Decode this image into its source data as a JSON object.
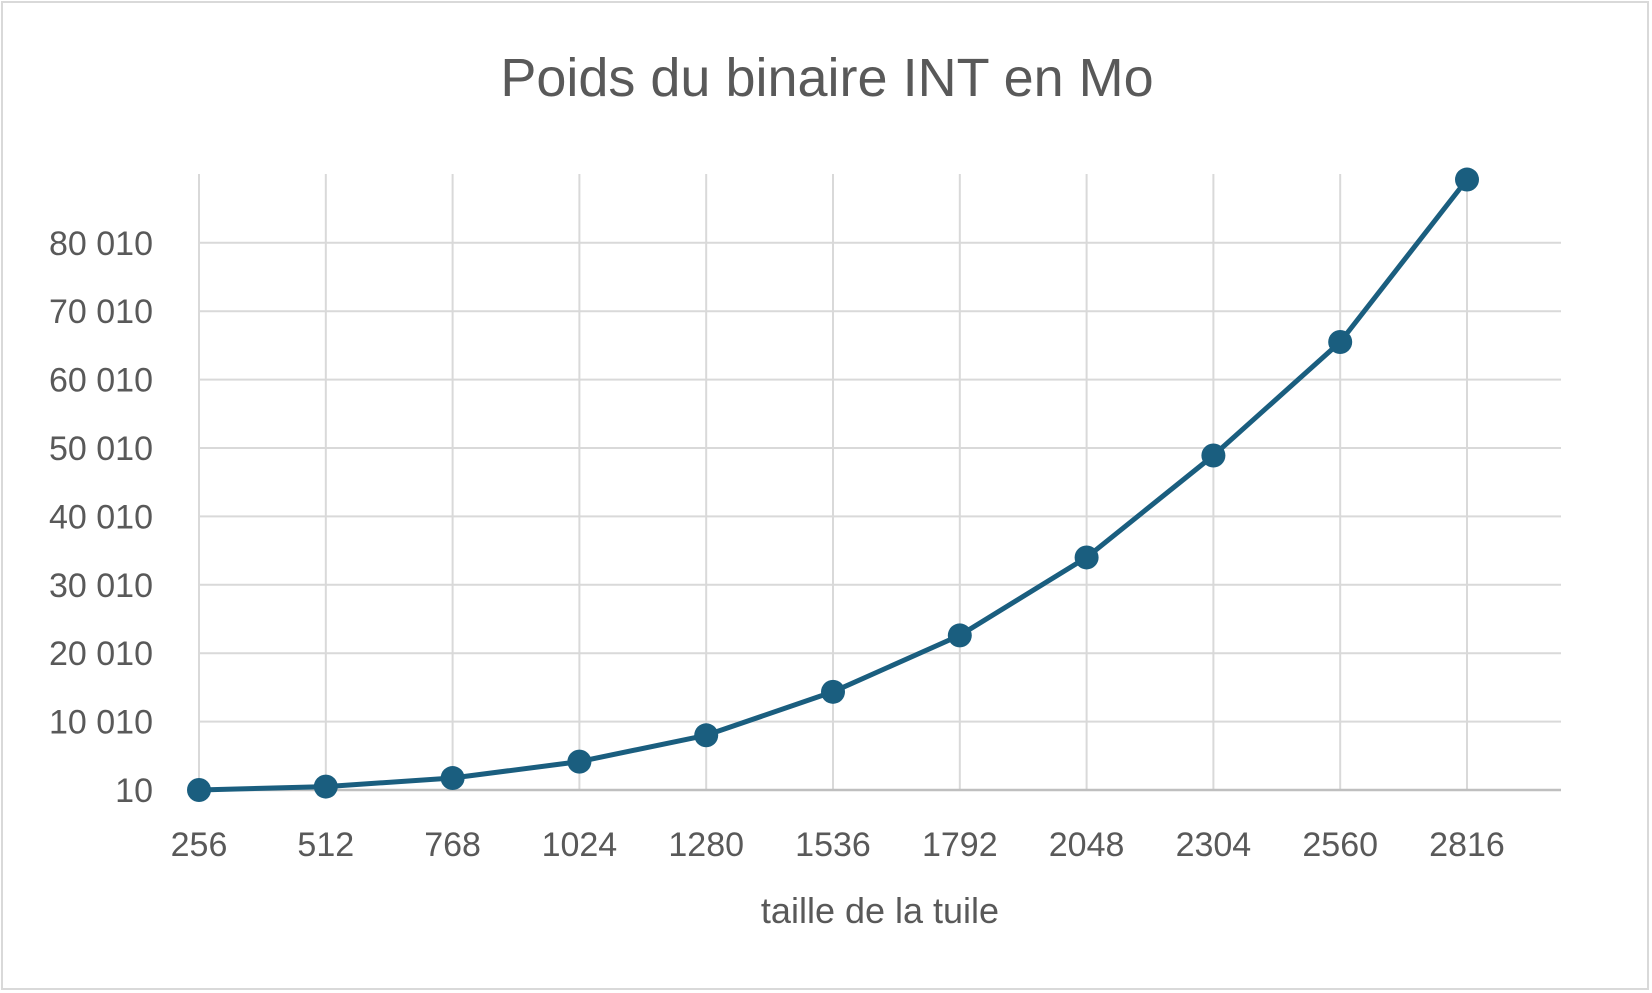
{
  "chart_data": {
    "type": "line",
    "title": "Poids du binaire  INT en Mo",
    "xlabel": "taille de la tuile",
    "ylabel": "",
    "categories": [
      "256",
      "512",
      "768",
      "1024",
      "1280",
      "1536",
      "1792",
      "2048",
      "2304",
      "2560",
      "2816"
    ],
    "series": [
      {
        "values": [
          10,
          510,
          1760,
          4160,
          8010,
          14360,
          22610,
          34010,
          48910,
          65510,
          89260
        ]
      }
    ],
    "y_ticks": [
      "10",
      "10 010",
      "20 010",
      "30 010",
      "40 010",
      "50 010",
      "60 010",
      "70 010",
      "80 010"
    ],
    "ylim": [
      10,
      90010
    ],
    "grid": true,
    "legend": "none",
    "colors": {
      "line": "#1a5e7f",
      "grid": "#d9d9d9",
      "text": "#595959"
    }
  }
}
